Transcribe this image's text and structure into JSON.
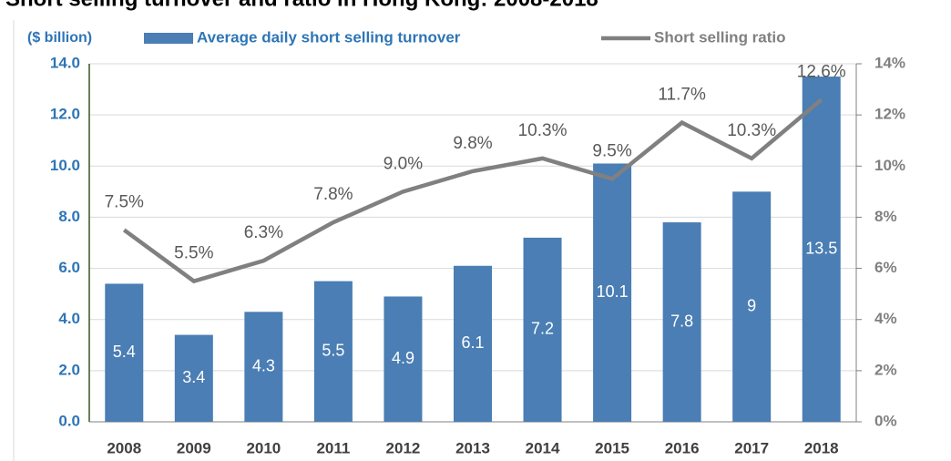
{
  "chart_data": {
    "type": "bar",
    "title": "Short selling turnover and ratio in Hong Kong: 2008-2018",
    "y_label": "($ billion)",
    "categories": [
      "2008",
      "2009",
      "2010",
      "2011",
      "2012",
      "2013",
      "2014",
      "2015",
      "2016",
      "2017",
      "2018"
    ],
    "series": [
      {
        "name": "Average daily short selling turnover",
        "type": "bar",
        "color": "#4a7eb4",
        "values": [
          5.4,
          3.4,
          4.3,
          5.5,
          4.9,
          6.1,
          7.2,
          10.1,
          7.8,
          9.0,
          13.5
        ]
      },
      {
        "name": "Short selling ratio",
        "type": "line",
        "color": "#808080",
        "axis": "y2",
        "values": [
          7.5,
          5.5,
          6.3,
          7.8,
          9.0,
          9.8,
          10.3,
          9.5,
          11.7,
          10.3,
          12.6
        ],
        "value_labels": [
          "7.5%",
          "5.5%",
          "6.3%",
          "7.8%",
          "9.0%",
          "9.8%",
          "10.3%",
          "9.5%",
          "11.7%",
          "10.3%",
          "12.6%"
        ]
      }
    ],
    "ylim": [
      0,
      14
    ],
    "yticks": [
      {
        "value": 0,
        "label": "0.0"
      },
      {
        "value": 2,
        "label": "2.0"
      },
      {
        "value": 4,
        "label": "4.0"
      },
      {
        "value": 6,
        "label": "6.0"
      },
      {
        "value": 8,
        "label": "8.0"
      },
      {
        "value": 10,
        "label": "10.0"
      },
      {
        "value": 12,
        "label": "12.0"
      },
      {
        "value": 14,
        "label": "14.0"
      }
    ],
    "y2lim": [
      0,
      14
    ],
    "y2ticks": [
      {
        "value": 0,
        "label": "0%"
      },
      {
        "value": 2,
        "label": "2%"
      },
      {
        "value": 4,
        "label": "4%"
      },
      {
        "value": 6,
        "label": "6%"
      },
      {
        "value": 8,
        "label": "8%"
      },
      {
        "value": 10,
        "label": "10%"
      },
      {
        "value": 12,
        "label": "12%"
      },
      {
        "value": 14,
        "label": "14%"
      }
    ],
    "grid": true
  }
}
